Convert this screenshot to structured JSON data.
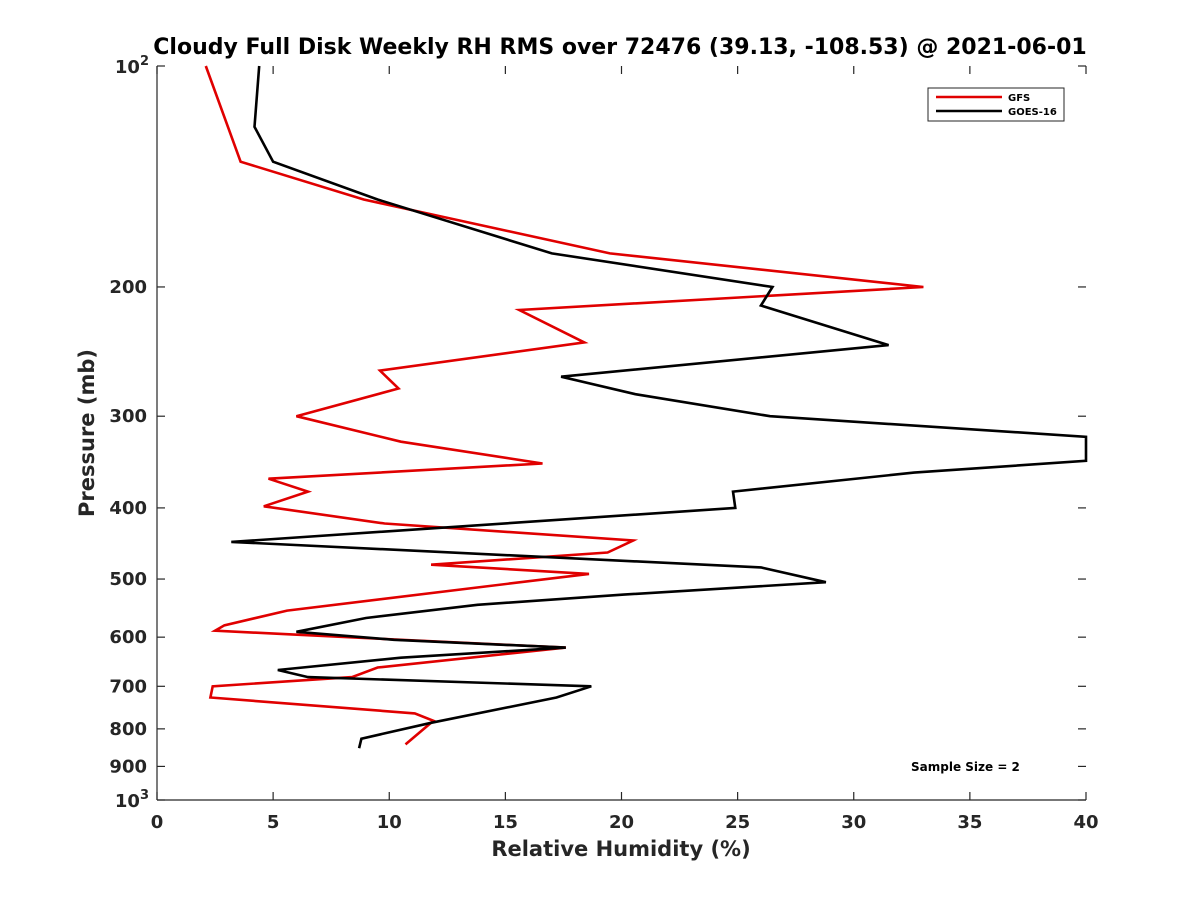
{
  "chart_data": {
    "type": "line",
    "title": "Cloudy Full Disk Weekly RH RMS over 72476 (39.13, -108.53) @ 2021-06-01",
    "xlabel": "Relative Humidity (%)",
    "ylabel": "Pressure (mb)",
    "xlim": [
      0,
      40
    ],
    "ylim": [
      100,
      1000
    ],
    "yscale": "log",
    "y_reversed": true,
    "grid": false,
    "legend_position": "top-right",
    "x_ticks": [
      "0",
      "5",
      "10",
      "15",
      "20",
      "25",
      "30",
      "35",
      "40"
    ],
    "y_ticks": [
      {
        "value": 100,
        "base": "10",
        "exp": "2"
      },
      {
        "value": 200,
        "label": "200"
      },
      {
        "value": 300,
        "label": "300"
      },
      {
        "value": 400,
        "label": "400"
      },
      {
        "value": 500,
        "label": "500"
      },
      {
        "value": 600,
        "label": "600"
      },
      {
        "value": 700,
        "label": "700"
      },
      {
        "value": 800,
        "label": "800"
      },
      {
        "value": 900,
        "label": "900"
      },
      {
        "value": 1000,
        "base": "10",
        "exp": "3"
      }
    ],
    "series": [
      {
        "name": "GFS",
        "color": "#e00000",
        "points": [
          [
            2.1,
            100
          ],
          [
            3.6,
            135
          ],
          [
            8.9,
            152
          ],
          [
            19.5,
            180
          ],
          [
            33.0,
            200
          ],
          [
            15.6,
            215
          ],
          [
            18.4,
            238
          ],
          [
            9.6,
            260
          ],
          [
            10.4,
            275
          ],
          [
            6.0,
            300
          ],
          [
            10.5,
            325
          ],
          [
            16.6,
            348
          ],
          [
            4.8,
            365
          ],
          [
            6.5,
            380
          ],
          [
            4.6,
            398
          ],
          [
            9.8,
            420
          ],
          [
            20.5,
            443
          ],
          [
            19.4,
            460
          ],
          [
            11.8,
            478
          ],
          [
            18.6,
            492
          ],
          [
            5.6,
            552
          ],
          [
            2.9,
            578
          ],
          [
            2.5,
            588
          ],
          [
            10.5,
            605
          ],
          [
            17.6,
            620
          ],
          [
            9.5,
            660
          ],
          [
            8.4,
            680
          ],
          [
            2.4,
            700
          ],
          [
            2.3,
            725
          ],
          [
            11.1,
            762
          ],
          [
            11.9,
            780
          ],
          [
            10.7,
            840
          ]
        ]
      },
      {
        "name": "GOES-16",
        "color": "#000000",
        "points": [
          [
            4.4,
            100
          ],
          [
            4.2,
            121
          ],
          [
            5.0,
            135
          ],
          [
            9.5,
            152
          ],
          [
            17.0,
            180
          ],
          [
            26.5,
            200
          ],
          [
            26.0,
            212
          ],
          [
            31.5,
            240
          ],
          [
            17.4,
            265
          ],
          [
            20.6,
            280
          ],
          [
            26.4,
            300
          ],
          [
            40.0,
            320
          ],
          [
            40.0,
            345
          ],
          [
            32.6,
            358
          ],
          [
            24.8,
            380
          ],
          [
            24.9,
            400
          ],
          [
            3.2,
            445
          ],
          [
            26.0,
            482
          ],
          [
            28.8,
            505
          ],
          [
            20.1,
            525
          ],
          [
            13.8,
            542
          ],
          [
            9.0,
            565
          ],
          [
            6.0,
            590
          ],
          [
            10.2,
            605
          ],
          [
            17.6,
            620
          ],
          [
            10.5,
            640
          ],
          [
            5.2,
            665
          ],
          [
            6.5,
            680
          ],
          [
            18.7,
            700
          ],
          [
            17.2,
            725
          ],
          [
            11.8,
            785
          ],
          [
            8.8,
            825
          ],
          [
            8.7,
            850
          ]
        ]
      }
    ],
    "annotation": "Sample Size = 2"
  }
}
